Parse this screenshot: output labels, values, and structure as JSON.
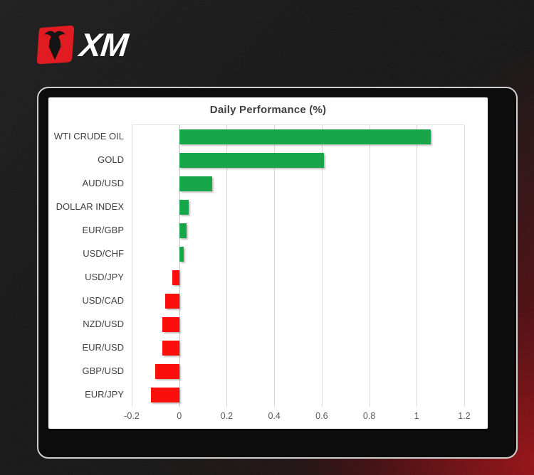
{
  "logo": {
    "brand": "XM",
    "icon": "xm-bull-icon",
    "red": "#e01b22",
    "text_color": "#ffffff"
  },
  "panel": {
    "border_color": "#cfcfcf",
    "inner_background": "#ffffff",
    "frame_background": "#0c0c0c"
  },
  "background": {
    "base_color": "#141414",
    "glow_color": "#a01016"
  },
  "chart_data": {
    "type": "bar",
    "orientation": "horizontal",
    "title": "Daily Performance (%)",
    "categories": [
      "WTI CRUDE OIL",
      "GOLD",
      "AUD/USD",
      "DOLLAR INDEX",
      "EUR/GBP",
      "USD/CHF",
      "USD/JPY",
      "USD/CAD",
      "NZD/USD",
      "EUR/USD",
      "GBP/USD",
      "EUR/JPY"
    ],
    "values": [
      1.06,
      0.61,
      0.14,
      0.04,
      0.03,
      0.02,
      -0.03,
      -0.06,
      -0.07,
      -0.07,
      -0.1,
      -0.12
    ],
    "xlim": [
      -0.2,
      1.2
    ],
    "xticks": [
      -0.2,
      0,
      0.2,
      0.4,
      0.6,
      0.8,
      1,
      1.2
    ],
    "xtick_labels": [
      "-0.2",
      "0",
      "0.2",
      "0.4",
      "0.6",
      "0.8",
      "1",
      "1.2"
    ],
    "positive_color": "#17a74a",
    "negative_color": "#fb0f0c",
    "grid": true,
    "gridline_color": "#d9d9d9",
    "legend": "none",
    "title_color": "#3f3f3f",
    "label_color": "#404040",
    "tick_color": "#595959"
  }
}
